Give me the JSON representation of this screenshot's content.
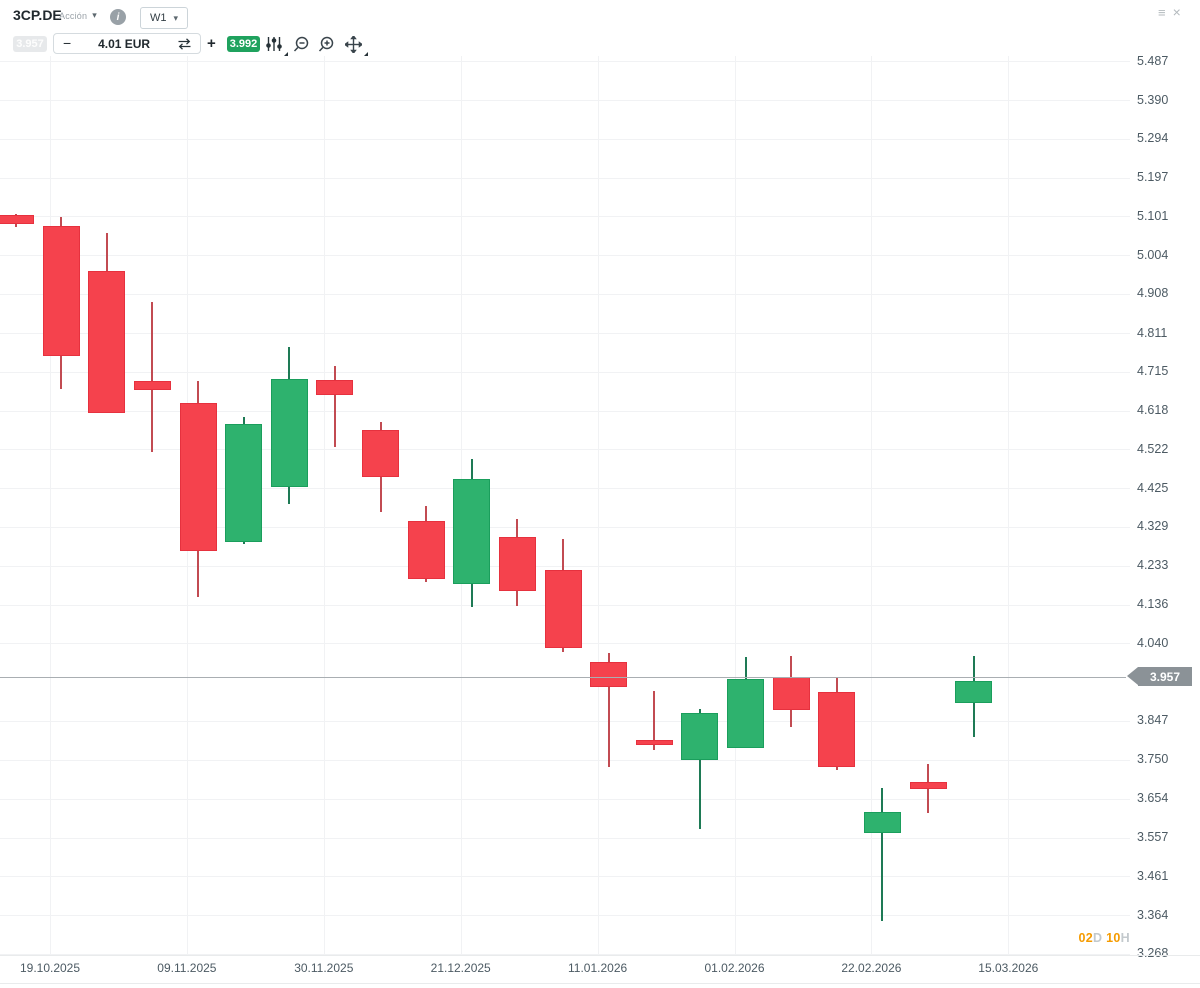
{
  "header": {
    "symbol": "3CP.DE",
    "instrument_type": "Acción",
    "caret": "▾",
    "info_label": "i",
    "timeframe": "W1",
    "menu_icon": "≡",
    "close_icon": "×"
  },
  "toolbar": {
    "sell_price": "3.957",
    "minus_label": "−",
    "volume_value": "4.01",
    "volume_currency": "EUR",
    "plus_label": "+",
    "buy_price": "3.992"
  },
  "chart_data": {
    "type": "candlestick",
    "symbol": "3CP.DE",
    "timeframe": "W1",
    "price_axis": {
      "min": 3.268,
      "max": 5.487,
      "ticks": [
        "5.487",
        "5.390",
        "5.294",
        "5.197",
        "5.101",
        "5.004",
        "4.908",
        "4.811",
        "4.715",
        "4.618",
        "4.522",
        "4.425",
        "4.329",
        "4.233",
        "4.136",
        "4.040",
        "3.847",
        "3.750",
        "3.654",
        "3.557",
        "3.461",
        "3.364",
        "3.268"
      ]
    },
    "time_axis": {
      "labels": [
        "19.10.2025",
        "09.11.2025",
        "30.11.2025",
        "21.12.2025",
        "11.01.2026",
        "01.02.2026",
        "22.02.2026",
        "15.03.2026"
      ]
    },
    "current_price": {
      "label": "3.957",
      "value": 3.957
    },
    "countdown": {
      "days_value": "02",
      "days_unit": "D",
      "hours_value": "10",
      "hours_unit": "H"
    },
    "candles": [
      {
        "o": 5.104,
        "h": 5.106,
        "l": 5.074,
        "c": 5.082
      },
      {
        "o": 5.077,
        "h": 5.099,
        "l": 4.672,
        "c": 4.754
      },
      {
        "o": 4.965,
        "h": 5.06,
        "l": 4.612,
        "c": 4.612
      },
      {
        "o": 4.692,
        "h": 4.888,
        "l": 4.515,
        "c": 4.67
      },
      {
        "o": 4.637,
        "h": 4.692,
        "l": 4.155,
        "c": 4.269
      },
      {
        "o": 4.292,
        "h": 4.602,
        "l": 4.287,
        "c": 4.585
      },
      {
        "o": 4.428,
        "h": 4.776,
        "l": 4.386,
        "c": 4.697
      },
      {
        "o": 4.694,
        "h": 4.729,
        "l": 4.528,
        "c": 4.657
      },
      {
        "o": 4.57,
        "h": 4.59,
        "l": 4.366,
        "c": 4.453
      },
      {
        "o": 4.344,
        "h": 4.381,
        "l": 4.192,
        "c": 4.2
      },
      {
        "o": 4.187,
        "h": 4.498,
        "l": 4.13,
        "c": 4.448
      },
      {
        "o": 4.304,
        "h": 4.349,
        "l": 4.133,
        "c": 4.17
      },
      {
        "o": 4.222,
        "h": 4.299,
        "l": 4.018,
        "c": 4.028
      },
      {
        "o": 3.993,
        "h": 4.016,
        "l": 3.733,
        "c": 3.931
      },
      {
        "o": 3.8,
        "h": 3.921,
        "l": 3.775,
        "c": 3.788
      },
      {
        "o": 3.75,
        "h": 3.877,
        "l": 3.579,
        "c": 3.867
      },
      {
        "o": 3.78,
        "h": 4.006,
        "l": 3.78,
        "c": 3.951
      },
      {
        "o": 3.956,
        "h": 4.008,
        "l": 3.832,
        "c": 3.874
      },
      {
        "o": 3.919,
        "h": 3.956,
        "l": 3.725,
        "c": 3.733
      },
      {
        "o": 3.569,
        "h": 3.681,
        "l": 3.351,
        "c": 3.621
      },
      {
        "o": 3.696,
        "h": 3.741,
        "l": 3.618,
        "c": 3.679
      },
      {
        "o": 3.891,
        "h": 4.008,
        "l": 3.807,
        "c": 3.946
      }
    ],
    "colors": {
      "up_fill": "#2eb26e",
      "up_border": "#1a9e5c",
      "up_wick": "#1e7a55",
      "down_fill": "#f5424d",
      "down_border": "#e6313e",
      "down_wick": "#c24b52",
      "price_line": "#a9aeb2",
      "price_badge_bg": "#8b9297",
      "buy_badge_bg": "#1fa25e",
      "countdown_orange": "#f59b00"
    }
  }
}
